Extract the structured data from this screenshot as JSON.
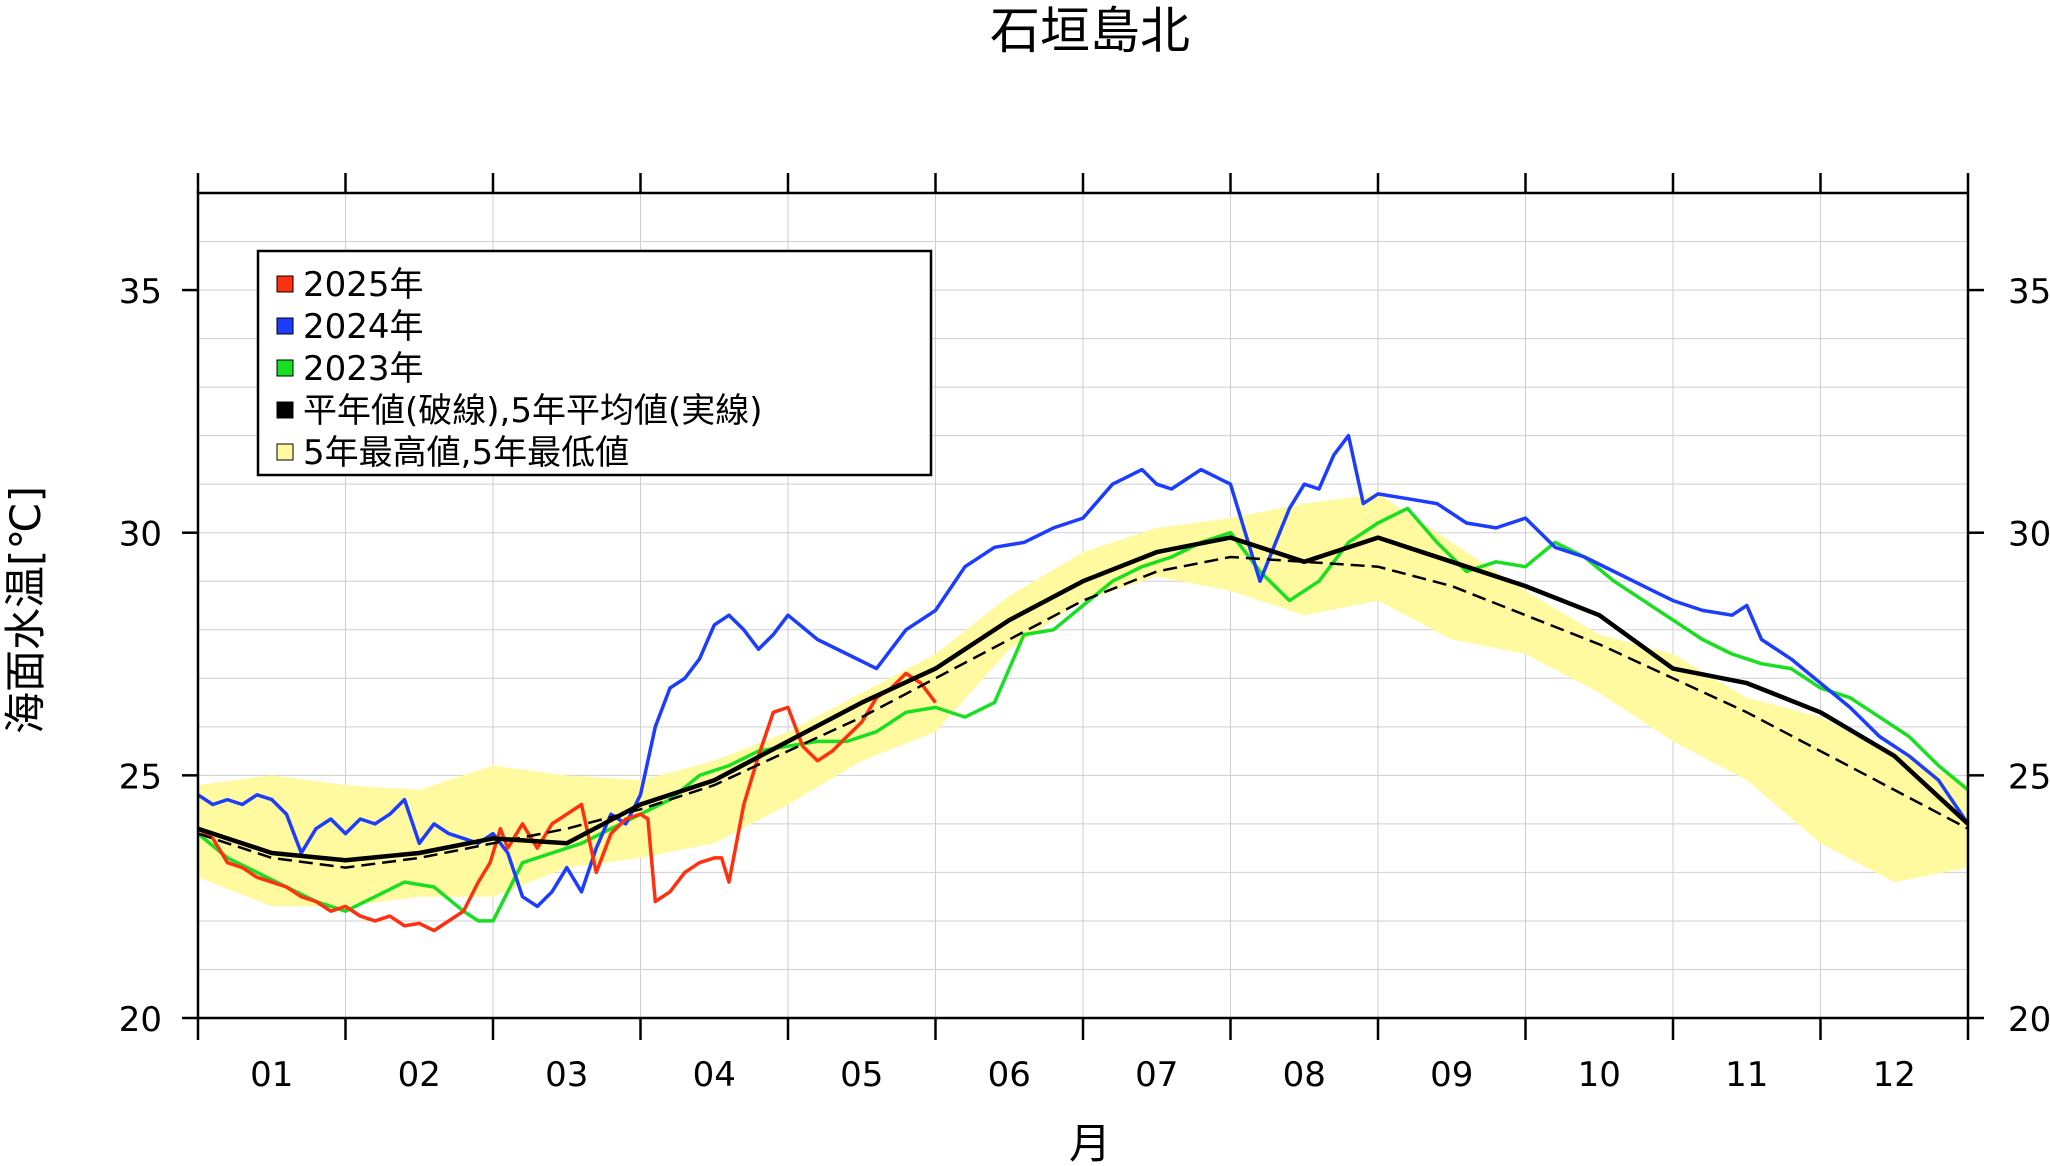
{
  "chart_data": {
    "type": "line",
    "title": "石垣島北",
    "xlabel": "月",
    "ylabel": "海面水温[℃]",
    "xlim": [
      0,
      12
    ],
    "ylim": [
      20,
      37
    ],
    "y_ticks": [
      20,
      25,
      30,
      35
    ],
    "x_tick_labels": [
      "01",
      "02",
      "03",
      "04",
      "05",
      "06",
      "07",
      "08",
      "09",
      "10",
      "11",
      "12"
    ],
    "grid": true,
    "legend_position": "top-left",
    "legend": [
      {
        "label": "2025年",
        "color": "#ff3010",
        "kind": "line"
      },
      {
        "label": "2024年",
        "color": "#1c3cff",
        "kind": "line"
      },
      {
        "label": "2023年",
        "color": "#18e020",
        "kind": "line"
      },
      {
        "label": "平年値(破線),5年平均値(実線)",
        "color": "#000000",
        "kind": "line"
      },
      {
        "label": "5年最高値,5年最低値",
        "color": "#fffaa0",
        "kind": "band"
      }
    ],
    "band": {
      "x": [
        0.0,
        0.5,
        1.0,
        1.5,
        2.0,
        2.5,
        3.0,
        3.5,
        4.0,
        4.5,
        5.0,
        5.5,
        6.0,
        6.5,
        7.0,
        7.5,
        8.0,
        8.5,
        9.0,
        9.5,
        10.0,
        10.5,
        11.0,
        11.5,
        12.0
      ],
      "upper": [
        24.8,
        25.0,
        24.8,
        24.7,
        25.2,
        25.0,
        24.9,
        25.3,
        25.9,
        26.7,
        27.5,
        28.7,
        29.6,
        30.1,
        30.3,
        30.6,
        30.8,
        29.8,
        28.8,
        27.9,
        27.5,
        26.6,
        26.2,
        25.5,
        24.8
      ],
      "lower": [
        22.9,
        22.3,
        22.3,
        22.5,
        22.5,
        23.1,
        23.3,
        23.6,
        24.4,
        25.3,
        25.9,
        27.6,
        28.6,
        29.1,
        28.8,
        28.3,
        28.6,
        27.8,
        27.5,
        26.7,
        25.7,
        24.9,
        23.6,
        22.8,
        23.1
      ]
    },
    "series": [
      {
        "name": "2025年",
        "color": "#ff3010",
        "dashed": false,
        "x": [
          0.0,
          0.1,
          0.2,
          0.3,
          0.4,
          0.5,
          0.6,
          0.7,
          0.8,
          0.9,
          1.0,
          1.1,
          1.2,
          1.3,
          1.4,
          1.5,
          1.6,
          1.7,
          1.8,
          1.9,
          1.96,
          1.98,
          2.05,
          2.1,
          2.2,
          2.3,
          2.4,
          2.5,
          2.6,
          2.7,
          2.8,
          2.9,
          3.0,
          3.05,
          3.1,
          3.2,
          3.3,
          3.4,
          3.5,
          3.55,
          3.6,
          3.7,
          3.8,
          3.9,
          4.0,
          4.1,
          4.2,
          4.3,
          4.4,
          4.5,
          4.6,
          4.7,
          4.8,
          4.9,
          5.0
        ],
        "y": [
          23.9,
          23.7,
          23.2,
          23.1,
          22.9,
          22.8,
          22.7,
          22.5,
          22.4,
          22.2,
          22.3,
          22.1,
          22.0,
          22.1,
          21.9,
          21.95,
          21.8,
          22.0,
          22.2,
          22.8,
          23.1,
          23.2,
          23.9,
          23.5,
          24.0,
          23.5,
          24.0,
          24.2,
          24.4,
          23.0,
          23.8,
          24.1,
          24.2,
          24.1,
          22.4,
          22.6,
          23.0,
          23.2,
          23.3,
          23.3,
          22.8,
          24.4,
          25.4,
          26.3,
          26.4,
          25.6,
          25.3,
          25.5,
          25.8,
          26.1,
          26.6,
          26.8,
          27.1,
          26.9,
          26.5
        ]
      },
      {
        "name": "2024年",
        "color": "#1c3cff",
        "dashed": false,
        "x": [
          0.0,
          0.1,
          0.2,
          0.3,
          0.4,
          0.5,
          0.6,
          0.7,
          0.8,
          0.9,
          1.0,
          1.1,
          1.2,
          1.3,
          1.4,
          1.5,
          1.6,
          1.7,
          1.8,
          1.9,
          2.0,
          2.1,
          2.2,
          2.3,
          2.4,
          2.5,
          2.6,
          2.7,
          2.8,
          2.9,
          3.0,
          3.1,
          3.2,
          3.3,
          3.4,
          3.5,
          3.6,
          3.7,
          3.8,
          3.9,
          4.0,
          4.2,
          4.4,
          4.6,
          4.8,
          5.0,
          5.2,
          5.4,
          5.6,
          5.8,
          6.0,
          6.2,
          6.4,
          6.5,
          6.6,
          6.8,
          7.0,
          7.2,
          7.4,
          7.5,
          7.6,
          7.7,
          7.8,
          7.9,
          8.0,
          8.2,
          8.4,
          8.6,
          8.8,
          9.0,
          9.2,
          9.4,
          9.6,
          9.8,
          10.0,
          10.2,
          10.4,
          10.5,
          10.6,
          10.8,
          11.0,
          11.2,
          11.4,
          11.6,
          11.8,
          12.0
        ],
        "y": [
          24.6,
          24.4,
          24.5,
          24.4,
          24.6,
          24.5,
          24.2,
          23.4,
          23.9,
          24.1,
          23.8,
          24.1,
          24.0,
          24.2,
          24.5,
          23.6,
          24.0,
          23.8,
          23.7,
          23.6,
          23.8,
          23.4,
          22.5,
          22.3,
          22.6,
          23.1,
          22.6,
          23.5,
          24.2,
          24.0,
          24.6,
          26.0,
          26.8,
          27.0,
          27.4,
          28.1,
          28.3,
          28.0,
          27.6,
          27.9,
          28.3,
          27.8,
          27.5,
          27.2,
          28.0,
          28.4,
          29.3,
          29.7,
          29.8,
          30.1,
          30.3,
          31.0,
          31.3,
          31.0,
          30.9,
          31.3,
          31.0,
          29.0,
          30.5,
          31.0,
          30.9,
          31.6,
          32.0,
          30.6,
          30.8,
          30.7,
          30.6,
          30.2,
          30.1,
          30.3,
          29.7,
          29.5,
          29.2,
          28.9,
          28.6,
          28.4,
          28.3,
          28.5,
          27.8,
          27.4,
          26.9,
          26.4,
          25.8,
          25.4,
          24.9,
          24.0
        ]
      },
      {
        "name": "2023年",
        "color": "#18e020",
        "dashed": false,
        "x": [
          0.0,
          0.2,
          0.4,
          0.6,
          0.8,
          1.0,
          1.2,
          1.4,
          1.6,
          1.8,
          1.9,
          2.0,
          2.2,
          2.4,
          2.6,
          2.8,
          3.0,
          3.2,
          3.4,
          3.6,
          3.8,
          4.0,
          4.2,
          4.4,
          4.6,
          4.8,
          5.0,
          5.2,
          5.4,
          5.6,
          5.8,
          6.0,
          6.2,
          6.4,
          6.6,
          6.8,
          7.0,
          7.1,
          7.2,
          7.4,
          7.6,
          7.8,
          8.0,
          8.2,
          8.4,
          8.6,
          8.8,
          9.0,
          9.2,
          9.4,
          9.6,
          9.8,
          10.0,
          10.2,
          10.4,
          10.6,
          10.8,
          11.0,
          11.2,
          11.4,
          11.6,
          11.8,
          12.0
        ],
        "y": [
          23.8,
          23.3,
          23.0,
          22.7,
          22.4,
          22.2,
          22.5,
          22.8,
          22.7,
          22.2,
          22.0,
          22.0,
          23.2,
          23.4,
          23.6,
          23.9,
          24.2,
          24.5,
          25.0,
          25.2,
          25.5,
          25.6,
          25.7,
          25.7,
          25.9,
          26.3,
          26.4,
          26.2,
          26.5,
          27.9,
          28.0,
          28.5,
          29.0,
          29.3,
          29.5,
          29.8,
          30.0,
          29.6,
          29.2,
          28.6,
          29.0,
          29.8,
          30.2,
          30.5,
          29.8,
          29.2,
          29.4,
          29.3,
          29.8,
          29.5,
          29.0,
          28.6,
          28.2,
          27.8,
          27.5,
          27.3,
          27.2,
          26.8,
          26.6,
          26.2,
          25.8,
          25.2,
          24.7
        ]
      },
      {
        "name": "5年平均値",
        "color": "#000000",
        "dashed": false,
        "x": [
          0.0,
          0.5,
          1.0,
          1.5,
          2.0,
          2.5,
          3.0,
          3.5,
          4.0,
          4.5,
          5.0,
          5.5,
          6.0,
          6.5,
          7.0,
          7.5,
          8.0,
          8.5,
          9.0,
          9.5,
          10.0,
          10.5,
          11.0,
          11.5,
          12.0
        ],
        "y": [
          23.9,
          23.4,
          23.25,
          23.4,
          23.7,
          23.6,
          24.4,
          24.9,
          25.7,
          26.5,
          27.2,
          28.2,
          29.0,
          29.6,
          29.9,
          29.4,
          29.9,
          29.4,
          28.9,
          28.3,
          27.2,
          26.9,
          26.3,
          25.4,
          24.0
        ]
      },
      {
        "name": "平年値",
        "color": "#000000",
        "dashed": true,
        "x": [
          0.0,
          0.5,
          1.0,
          1.5,
          2.0,
          2.5,
          3.0,
          3.5,
          4.0,
          4.5,
          5.0,
          5.5,
          6.0,
          6.5,
          7.0,
          7.5,
          8.0,
          8.5,
          9.0,
          9.5,
          10.0,
          10.5,
          11.0,
          11.5,
          12.0
        ],
        "y": [
          23.8,
          23.3,
          23.1,
          23.3,
          23.6,
          23.9,
          24.3,
          24.8,
          25.5,
          26.2,
          27.0,
          27.8,
          28.6,
          29.2,
          29.5,
          29.4,
          29.3,
          28.9,
          28.3,
          27.7,
          27.0,
          26.3,
          25.5,
          24.7,
          23.9
        ]
      }
    ]
  }
}
